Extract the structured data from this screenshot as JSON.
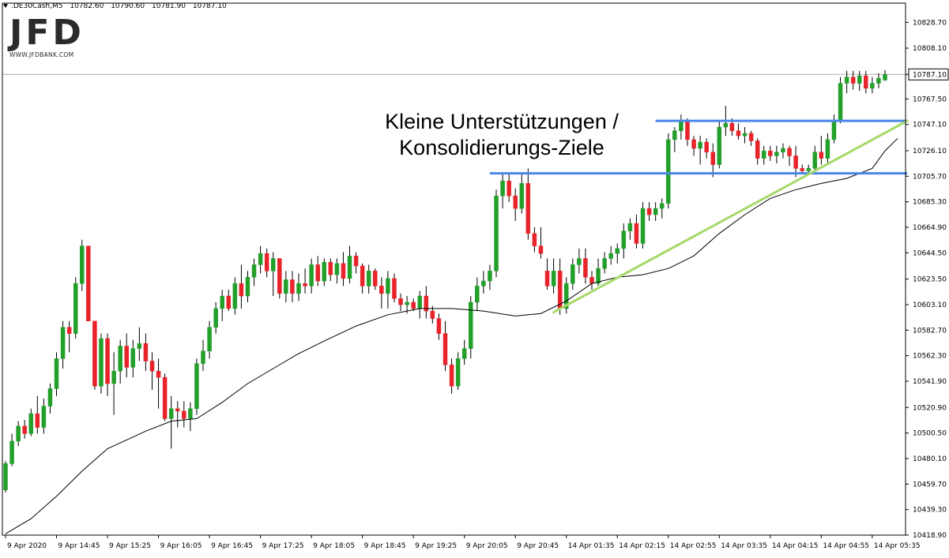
{
  "header": {
    "symbol": ".DE30Cash,M5",
    "open": "10782.60",
    "high": "10790.60",
    "low": "10781.90",
    "close": "10787.10"
  },
  "logo": {
    "text": "JFD",
    "subtitle": "WWW.JFDBANK.COM"
  },
  "annotation": {
    "line1": "Kleine Unterstützungen /",
    "line2": "Konsolidierungs-Ziele"
  },
  "colors": {
    "bull": "#22a02a",
    "bear": "#e8232a",
    "moving_average": "#000000",
    "horizontal_levels": "#4a86e8",
    "trendline": "#a6d96a",
    "grid": "#cfcfcf"
  },
  "chart_data": {
    "type": "candlestick",
    "symbol": ".DE30Cash,M5",
    "current_price": "10787.10",
    "ylim": [
      10418.9,
      10839.0
    ],
    "y_ticks": [
      "10828.70",
      "10808.10",
      "10787.10",
      "10767.50",
      "10747.10",
      "10726.10",
      "10705.70",
      "10685.30",
      "10664.90",
      "10644.50",
      "10623.50",
      "10603.10",
      "10582.70",
      "10562.30",
      "10541.90",
      "10520.90",
      "10500.50",
      "10480.10",
      "10459.70",
      "10439.30",
      "10418.90"
    ],
    "x_ticks": [
      "9 Apr 2020",
      "9 Apr 14:45",
      "9 Apr 15:25",
      "9 Apr 16:05",
      "9 Apr 16:45",
      "9 Apr 17:25",
      "9 Apr 18:05",
      "9 Apr 18:45",
      "9 Apr 19:25",
      "9 Apr 20:05",
      "9 Apr 20:45",
      "14 Apr 01:35",
      "14 Apr 02:15",
      "14 Apr 02:55",
      "14 Apr 03:35",
      "14 Apr 04:15",
      "14 Apr 04:55",
      "14 Apr 05:35"
    ],
    "candles": [
      [
        10455,
        10478,
        10453,
        10476
      ],
      [
        10476,
        10500,
        10474,
        10494
      ],
      [
        10494,
        10510,
        10490,
        10506
      ],
      [
        10506,
        10511,
        10496,
        10500
      ],
      [
        10500,
        10520,
        10498,
        10516
      ],
      [
        10516,
        10530,
        10500,
        10505
      ],
      [
        10505,
        10528,
        10500,
        10522
      ],
      [
        10522,
        10540,
        10516,
        10536
      ],
      [
        10536,
        10565,
        10530,
        10560
      ],
      [
        10560,
        10590,
        10552,
        10585
      ],
      [
        10585,
        10590,
        10565,
        10580
      ],
      [
        10580,
        10625,
        10576,
        10620
      ],
      [
        10620,
        10655,
        10614,
        10650
      ],
      [
        10650,
        10650,
        10590,
        10590
      ],
      [
        10590,
        10590,
        10535,
        10538
      ],
      [
        10538,
        10580,
        10532,
        10576
      ],
      [
        10576,
        10580,
        10530,
        10540
      ],
      [
        10540,
        10565,
        10515,
        10550
      ],
      [
        10550,
        10575,
        10540,
        10570
      ],
      [
        10570,
        10580,
        10545,
        10553
      ],
      [
        10553,
        10575,
        10545,
        10568
      ],
      [
        10568,
        10585,
        10558,
        10572
      ],
      [
        10572,
        10580,
        10550,
        10558
      ],
      [
        10558,
        10565,
        10535,
        10550
      ],
      [
        10550,
        10560,
        10520,
        10545
      ],
      [
        10545,
        10548,
        10510,
        10512
      ],
      [
        10512,
        10530,
        10488,
        10520
      ],
      [
        10520,
        10526,
        10505,
        10518
      ],
      [
        10518,
        10526,
        10505,
        10512
      ],
      [
        10512,
        10525,
        10502,
        10520
      ],
      [
        10520,
        10560,
        10515,
        10556
      ],
      [
        10556,
        10575,
        10550,
        10566
      ],
      [
        10566,
        10590,
        10560,
        10585
      ],
      [
        10585,
        10605,
        10580,
        10600
      ],
      [
        10600,
        10615,
        10590,
        10610
      ],
      [
        10610,
        10615,
        10598,
        10600
      ],
      [
        10600,
        10625,
        10595,
        10620
      ],
      [
        10620,
        10635,
        10600,
        10610
      ],
      [
        10610,
        10630,
        10605,
        10625
      ],
      [
        10625,
        10640,
        10618,
        10635
      ],
      [
        10635,
        10650,
        10628,
        10644
      ],
      [
        10644,
        10648,
        10625,
        10630
      ],
      [
        10630,
        10645,
        10610,
        10640
      ],
      [
        10640,
        10640,
        10608,
        10612
      ],
      [
        10612,
        10630,
        10605,
        10623
      ],
      [
        10623,
        10630,
        10605,
        10612
      ],
      [
        10612,
        10628,
        10606,
        10620
      ],
      [
        10620,
        10632,
        10612,
        10618
      ],
      [
        10618,
        10640,
        10612,
        10635
      ],
      [
        10635,
        10642,
        10618,
        10622
      ],
      [
        10622,
        10640,
        10618,
        10637
      ],
      [
        10637,
        10640,
        10622,
        10627
      ],
      [
        10627,
        10640,
        10620,
        10636
      ],
      [
        10636,
        10645,
        10618,
        10624
      ],
      [
        10624,
        10650,
        10620,
        10642
      ],
      [
        10642,
        10645,
        10628,
        10634
      ],
      [
        10634,
        10636,
        10612,
        10618
      ],
      [
        10618,
        10635,
        10612,
        10630
      ],
      [
        10630,
        10632,
        10615,
        10618
      ],
      [
        10618,
        10625,
        10600,
        10612
      ],
      [
        10612,
        10630,
        10600,
        10624
      ],
      [
        10624,
        10628,
        10605,
        10608
      ],
      [
        10608,
        10612,
        10598,
        10603
      ],
      [
        10603,
        10610,
        10596,
        10605
      ],
      [
        10605,
        10608,
        10598,
        10600
      ],
      [
        10600,
        10614,
        10592,
        10610
      ],
      [
        10610,
        10618,
        10592,
        10598
      ],
      [
        10598,
        10602,
        10588,
        10592
      ],
      [
        10592,
        10596,
        10575,
        10580
      ],
      [
        10580,
        10590,
        10550,
        10555
      ],
      [
        10555,
        10560,
        10532,
        10538
      ],
      [
        10538,
        10565,
        10535,
        10560
      ],
      [
        10560,
        10575,
        10555,
        10568
      ],
      [
        10568,
        10610,
        10560,
        10605
      ],
      [
        10605,
        10625,
        10598,
        10618
      ],
      [
        10618,
        10630,
        10612,
        10622
      ],
      [
        10622,
        10635,
        10615,
        10630
      ],
      [
        10630,
        10695,
        10625,
        10690
      ],
      [
        10690,
        10708,
        10680,
        10702
      ],
      [
        10702,
        10708,
        10685,
        10690
      ],
      [
        10690,
        10696,
        10670,
        10680
      ],
      [
        10680,
        10708,
        10676,
        10700
      ],
      [
        10700,
        10712,
        10655,
        10660
      ],
      [
        10660,
        10665,
        10645,
        10650
      ],
      [
        10650,
        10665,
        10640,
        10644
      ],
      [
        10630,
        10640,
        10615,
        10618
      ],
      [
        10618,
        10640,
        10612,
        10630
      ],
      [
        10630,
        10640,
        10595,
        10600
      ],
      [
        10600,
        10625,
        10596,
        10620
      ],
      [
        10620,
        10640,
        10615,
        10635
      ],
      [
        10635,
        10648,
        10628,
        10640
      ],
      [
        10640,
        10648,
        10620,
        10625
      ],
      [
        10625,
        10630,
        10615,
        10620
      ],
      [
        10620,
        10640,
        10618,
        10632
      ],
      [
        10632,
        10645,
        10628,
        10640
      ],
      [
        10640,
        10650,
        10635,
        10644
      ],
      [
        10644,
        10652,
        10636,
        10648
      ],
      [
        10648,
        10668,
        10640,
        10662
      ],
      [
        10662,
        10672,
        10655,
        10668
      ],
      [
        10668,
        10675,
        10648,
        10652
      ],
      [
        10652,
        10685,
        10648,
        10680
      ],
      [
        10680,
        10685,
        10670,
        10675
      ],
      [
        10675,
        10685,
        10670,
        10680
      ],
      [
        10680,
        10688,
        10672,
        10684
      ],
      [
        10684,
        10740,
        10680,
        10735
      ],
      [
        10735,
        10745,
        10725,
        10742
      ],
      [
        10742,
        10755,
        10735,
        10750
      ],
      [
        10750,
        10752,
        10730,
        10735
      ],
      [
        10735,
        10738,
        10722,
        10728
      ],
      [
        10728,
        10738,
        10715,
        10733
      ],
      [
        10733,
        10736,
        10720,
        10725
      ],
      [
        10725,
        10732,
        10705,
        10715
      ],
      [
        10715,
        10750,
        10712,
        10745
      ],
      [
        10745,
        10762,
        10738,
        10748
      ],
      [
        10748,
        10752,
        10738,
        10742
      ],
      [
        10742,
        10748,
        10735,
        10738
      ],
      [
        10738,
        10745,
        10732,
        10740
      ],
      [
        10740,
        10742,
        10730,
        10734
      ],
      [
        10734,
        10736,
        10715,
        10720
      ],
      [
        10720,
        10730,
        10715,
        10726
      ],
      [
        10726,
        10730,
        10718,
        10722
      ],
      [
        10722,
        10730,
        10716,
        10725
      ],
      [
        10725,
        10732,
        10720,
        10728
      ],
      [
        10728,
        10730,
        10714,
        10722
      ],
      [
        10722,
        10730,
        10705,
        10712
      ],
      [
        10712,
        10715,
        10708,
        10710
      ],
      [
        10710,
        10715,
        10708,
        10712
      ],
      [
        10712,
        10730,
        10710,
        10725
      ],
      [
        10725,
        10738,
        10715,
        10720
      ],
      [
        10720,
        10740,
        10716,
        10735
      ],
      [
        10735,
        10755,
        10732,
        10750
      ],
      [
        10750,
        10785,
        10748,
        10780
      ],
      [
        10780,
        10790,
        10772,
        10785
      ],
      [
        10785,
        10790,
        10775,
        10780
      ],
      [
        10780,
        10790,
        10774,
        10786
      ],
      [
        10786,
        10790,
        10772,
        10776
      ],
      [
        10776,
        10785,
        10772,
        10780
      ],
      [
        10780,
        10788,
        10776,
        10784
      ],
      [
        10782.6,
        10790.6,
        10781.9,
        10787.1
      ]
    ],
    "moving_average": [
      [
        0,
        10420
      ],
      [
        4,
        10432
      ],
      [
        8,
        10450
      ],
      [
        12,
        10470
      ],
      [
        16,
        10488
      ],
      [
        22,
        10502
      ],
      [
        26,
        10510
      ],
      [
        30,
        10512
      ],
      [
        34,
        10525
      ],
      [
        38,
        10540
      ],
      [
        42,
        10552
      ],
      [
        46,
        10564
      ],
      [
        50,
        10574
      ],
      [
        55,
        10586
      ],
      [
        60,
        10595
      ],
      [
        65,
        10600
      ],
      [
        70,
        10600
      ],
      [
        75,
        10598
      ],
      [
        80,
        10594
      ],
      [
        84,
        10596
      ],
      [
        88,
        10606
      ],
      [
        92,
        10620
      ],
      [
        96,
        10625
      ],
      [
        100,
        10627
      ],
      [
        104,
        10632
      ],
      [
        108,
        10642
      ],
      [
        112,
        10660
      ],
      [
        116,
        10675
      ],
      [
        120,
        10688
      ],
      [
        124,
        10695
      ],
      [
        128,
        10700
      ],
      [
        132,
        10704
      ],
      [
        136,
        10712
      ],
      [
        138,
        10726
      ],
      [
        140,
        10736
      ]
    ],
    "horizontal_levels": [
      {
        "value": 10750,
        "from_index": 102,
        "to_index": 141
      },
      {
        "value": 10708,
        "from_index": 76,
        "to_index": 141
      }
    ],
    "trendline": {
      "from": [
        86,
        10597
      ],
      "to": [
        141,
        10750
      ]
    }
  }
}
